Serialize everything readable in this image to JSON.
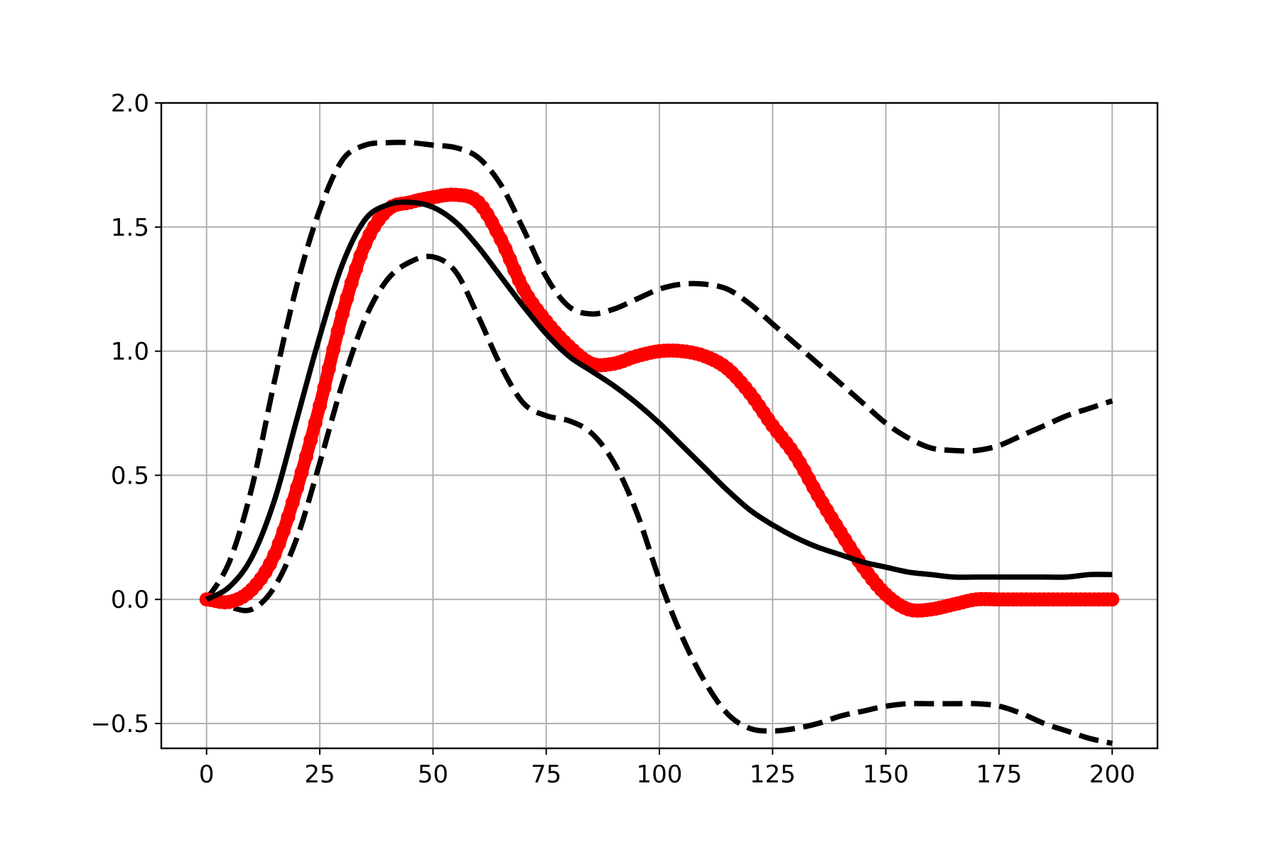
{
  "chart_data": {
    "type": "line",
    "title": "",
    "xlabel": "",
    "ylabel": "",
    "xlim": [
      -10,
      210
    ],
    "ylim": [
      -0.6,
      2.0
    ],
    "grid": true,
    "legend": "none",
    "x_ticks": [
      0,
      25,
      50,
      75,
      100,
      125,
      150,
      175,
      200
    ],
    "x_tick_labels": [
      "0",
      "25",
      "50",
      "75",
      "100",
      "125",
      "150",
      "175",
      "200"
    ],
    "y_ticks": [
      2.0,
      1.5,
      1.0,
      0.5,
      0.0,
      -0.5
    ],
    "y_tick_labels": [
      "2.0",
      "1.5",
      "1.0",
      "0.5",
      "0.0",
      "−0.5"
    ],
    "colors": {
      "red_series": "#ff0000",
      "black_series": "#000000",
      "grid": "#b0b0b0"
    },
    "series": [
      {
        "style": "red-markers",
        "x": [
          0,
          5,
          10,
          15,
          20,
          25,
          30,
          35,
          40,
          45,
          50,
          55,
          60,
          65,
          70,
          75,
          80,
          85,
          90,
          95,
          100,
          105,
          110,
          115,
          120,
          125,
          130,
          135,
          140,
          145,
          150,
          155,
          160,
          165,
          170,
          175,
          180,
          185,
          190,
          195,
          200
        ],
        "y": [
          0.0,
          -0.01,
          0.04,
          0.18,
          0.45,
          0.78,
          1.15,
          1.43,
          1.57,
          1.6,
          1.62,
          1.63,
          1.6,
          1.45,
          1.25,
          1.12,
          1.02,
          0.95,
          0.95,
          0.98,
          1.0,
          1.0,
          0.98,
          0.93,
          0.83,
          0.7,
          0.58,
          0.42,
          0.27,
          0.13,
          0.02,
          -0.04,
          -0.04,
          -0.02,
          0.0,
          0.0,
          0.0,
          0.0,
          0.0,
          0.0,
          0.0
        ]
      },
      {
        "style": "black-solid",
        "x": [
          0,
          5,
          10,
          15,
          20,
          25,
          30,
          35,
          40,
          45,
          50,
          55,
          60,
          65,
          70,
          75,
          80,
          85,
          90,
          95,
          100,
          105,
          110,
          115,
          120,
          125,
          130,
          135,
          140,
          145,
          150,
          155,
          160,
          165,
          170,
          175,
          180,
          185,
          190,
          195,
          200
        ],
        "y": [
          0.0,
          0.05,
          0.17,
          0.4,
          0.73,
          1.06,
          1.35,
          1.53,
          1.59,
          1.6,
          1.58,
          1.52,
          1.42,
          1.3,
          1.18,
          1.07,
          0.98,
          0.92,
          0.86,
          0.79,
          0.71,
          0.62,
          0.53,
          0.44,
          0.36,
          0.3,
          0.25,
          0.21,
          0.18,
          0.15,
          0.13,
          0.11,
          0.1,
          0.09,
          0.09,
          0.09,
          0.09,
          0.09,
          0.09,
          0.1,
          0.1
        ]
      },
      {
        "style": "black-dashed",
        "x": [
          0,
          5,
          10,
          15,
          20,
          25,
          30,
          35,
          40,
          45,
          50,
          55,
          60,
          65,
          70,
          75,
          80,
          85,
          90,
          95,
          100,
          105,
          110,
          115,
          120,
          125,
          130,
          135,
          140,
          145,
          150,
          155,
          160,
          165,
          170,
          175,
          180,
          185,
          190,
          195,
          200
        ],
        "y": [
          0.0,
          0.15,
          0.45,
          0.88,
          1.27,
          1.57,
          1.77,
          1.83,
          1.84,
          1.84,
          1.83,
          1.82,
          1.78,
          1.67,
          1.49,
          1.3,
          1.18,
          1.15,
          1.17,
          1.21,
          1.25,
          1.27,
          1.27,
          1.25,
          1.19,
          1.11,
          1.03,
          0.95,
          0.87,
          0.79,
          0.71,
          0.65,
          0.61,
          0.6,
          0.6,
          0.62,
          0.66,
          0.7,
          0.74,
          0.77,
          0.8
        ]
      },
      {
        "style": "black-dashed",
        "x": [
          0,
          5,
          10,
          15,
          20,
          25,
          30,
          35,
          40,
          45,
          50,
          55,
          60,
          65,
          70,
          75,
          80,
          85,
          90,
          95,
          100,
          105,
          110,
          115,
          120,
          125,
          130,
          135,
          140,
          145,
          150,
          155,
          160,
          165,
          170,
          175,
          180,
          185,
          190,
          195,
          200
        ],
        "y": [
          0.0,
          -0.03,
          -0.04,
          0.05,
          0.25,
          0.55,
          0.87,
          1.13,
          1.29,
          1.36,
          1.38,
          1.32,
          1.14,
          0.94,
          0.79,
          0.74,
          0.72,
          0.67,
          0.55,
          0.35,
          0.08,
          -0.15,
          -0.33,
          -0.46,
          -0.52,
          -0.53,
          -0.52,
          -0.5,
          -0.47,
          -0.45,
          -0.43,
          -0.42,
          -0.42,
          -0.42,
          -0.42,
          -0.43,
          -0.46,
          -0.5,
          -0.53,
          -0.56,
          -0.58
        ]
      }
    ]
  }
}
